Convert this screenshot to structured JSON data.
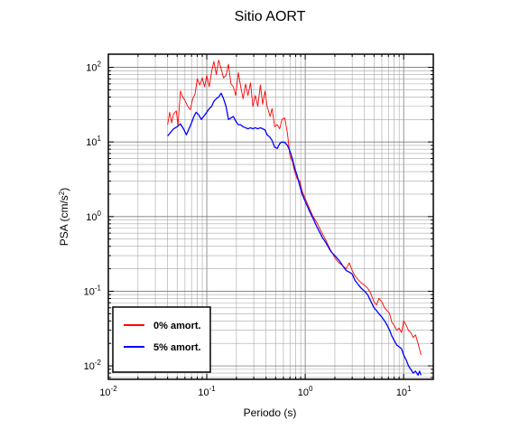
{
  "chart_data": {
    "type": "line",
    "title": "Sitio AORT",
    "xlabel": "Periodo (s)",
    "ylabel": {
      "main": "PSA (cm/s",
      "sup": "2",
      "end": ")"
    },
    "xscale": "log",
    "yscale": "log",
    "xlim": [
      0.01,
      20
    ],
    "ylim": [
      0.0066,
      150
    ],
    "grid": true,
    "legend_position": "bottom-left",
    "x_ticks": [
      {
        "value": 0.01,
        "base": "10",
        "exp": "-2"
      },
      {
        "value": 0.1,
        "base": "10",
        "exp": "-1"
      },
      {
        "value": 1,
        "base": "10",
        "exp": "0"
      },
      {
        "value": 10,
        "base": "10",
        "exp": "1"
      }
    ],
    "y_ticks": [
      {
        "value": 0.01,
        "base": "10",
        "exp": "-2"
      },
      {
        "value": 0.1,
        "base": "10",
        "exp": "-1"
      },
      {
        "value": 1,
        "base": "10",
        "exp": "0"
      },
      {
        "value": 10,
        "base": "10",
        "exp": "1"
      },
      {
        "value": 100,
        "base": "10",
        "exp": "2"
      }
    ],
    "series": [
      {
        "name": "0% amort.",
        "color": "#ff0000",
        "points": [
          [
            0.04,
            17
          ],
          [
            0.042,
            25
          ],
          [
            0.044,
            18
          ],
          [
            0.046,
            24
          ],
          [
            0.049,
            26
          ],
          [
            0.051,
            17
          ],
          [
            0.054,
            48
          ],
          [
            0.057,
            40
          ],
          [
            0.06,
            36
          ],
          [
            0.064,
            30
          ],
          [
            0.068,
            27
          ],
          [
            0.072,
            38
          ],
          [
            0.076,
            44
          ],
          [
            0.08,
            70
          ],
          [
            0.085,
            58
          ],
          [
            0.09,
            72
          ],
          [
            0.095,
            55
          ],
          [
            0.1,
            78
          ],
          [
            0.106,
            55
          ],
          [
            0.112,
            88
          ],
          [
            0.118,
            120
          ],
          [
            0.125,
            80
          ],
          [
            0.132,
            125
          ],
          [
            0.14,
            95
          ],
          [
            0.148,
            72
          ],
          [
            0.157,
            78
          ],
          [
            0.166,
            110
          ],
          [
            0.176,
            60
          ],
          [
            0.186,
            55
          ],
          [
            0.197,
            42
          ],
          [
            0.209,
            85
          ],
          [
            0.221,
            55
          ],
          [
            0.234,
            38
          ],
          [
            0.248,
            60
          ],
          [
            0.262,
            42
          ],
          [
            0.278,
            62
          ],
          [
            0.294,
            30
          ],
          [
            0.311,
            42
          ],
          [
            0.33,
            30
          ],
          [
            0.35,
            58
          ],
          [
            0.37,
            32
          ],
          [
            0.39,
            48
          ],
          [
            0.41,
            30
          ],
          [
            0.44,
            22
          ],
          [
            0.46,
            28
          ],
          [
            0.49,
            16
          ],
          [
            0.52,
            17
          ],
          [
            0.55,
            15
          ],
          [
            0.58,
            20
          ],
          [
            0.62,
            21
          ],
          [
            0.66,
            13
          ],
          [
            0.7,
            6.5
          ],
          [
            0.74,
            5.5
          ],
          [
            0.78,
            4.0
          ],
          [
            0.83,
            3.2
          ],
          [
            0.88,
            3.0
          ],
          [
            0.93,
            2.2
          ],
          [
            0.99,
            1.8
          ],
          [
            1.05,
            1.5
          ],
          [
            1.1,
            1.3
          ],
          [
            1.2,
            1.0
          ],
          [
            1.3,
            0.85
          ],
          [
            1.4,
            0.7
          ],
          [
            1.5,
            0.58
          ],
          [
            1.6,
            0.5
          ],
          [
            1.7,
            0.42
          ],
          [
            1.8,
            0.36
          ],
          [
            1.9,
            0.32
          ],
          [
            2.0,
            0.28
          ],
          [
            2.2,
            0.24
          ],
          [
            2.4,
            0.22
          ],
          [
            2.6,
            0.2
          ],
          [
            2.8,
            0.24
          ],
          [
            3.0,
            0.19
          ],
          [
            3.2,
            0.16
          ],
          [
            3.5,
            0.14
          ],
          [
            3.7,
            0.13
          ],
          [
            4.0,
            0.12
          ],
          [
            4.3,
            0.11
          ],
          [
            4.6,
            0.095
          ],
          [
            5.0,
            0.072
          ],
          [
            5.3,
            0.065
          ],
          [
            5.6,
            0.08
          ],
          [
            6.0,
            0.072
          ],
          [
            6.4,
            0.06
          ],
          [
            6.8,
            0.055
          ],
          [
            7.2,
            0.05
          ],
          [
            7.6,
            0.038
          ],
          [
            8.0,
            0.035
          ],
          [
            8.5,
            0.03
          ],
          [
            9.0,
            0.032
          ],
          [
            9.5,
            0.028
          ],
          [
            10.0,
            0.04
          ],
          [
            10.6,
            0.035
          ],
          [
            11.2,
            0.03
          ],
          [
            11.8,
            0.028
          ],
          [
            12.5,
            0.024
          ],
          [
            13.2,
            0.026
          ],
          [
            14.0,
            0.02
          ],
          [
            15.0,
            0.014
          ]
        ]
      },
      {
        "name": "5% amort.",
        "color": "#0000ff",
        "points": [
          [
            0.04,
            12
          ],
          [
            0.043,
            13.5
          ],
          [
            0.046,
            15
          ],
          [
            0.05,
            16
          ],
          [
            0.054,
            17.5
          ],
          [
            0.058,
            15
          ],
          [
            0.062,
            12.5
          ],
          [
            0.066,
            15
          ],
          [
            0.07,
            18
          ],
          [
            0.074,
            22
          ],
          [
            0.078,
            25
          ],
          [
            0.083,
            23
          ],
          [
            0.088,
            20
          ],
          [
            0.093,
            22
          ],
          [
            0.1,
            25
          ],
          [
            0.106,
            28
          ],
          [
            0.112,
            30
          ],
          [
            0.118,
            35
          ],
          [
            0.125,
            38
          ],
          [
            0.132,
            40
          ],
          [
            0.14,
            45
          ],
          [
            0.148,
            38
          ],
          [
            0.157,
            30
          ],
          [
            0.166,
            20
          ],
          [
            0.176,
            21
          ],
          [
            0.186,
            22
          ],
          [
            0.197,
            19
          ],
          [
            0.209,
            17
          ],
          [
            0.221,
            17
          ],
          [
            0.234,
            16
          ],
          [
            0.248,
            15.5
          ],
          [
            0.262,
            15
          ],
          [
            0.278,
            15.5
          ],
          [
            0.294,
            15
          ],
          [
            0.311,
            15.5
          ],
          [
            0.33,
            15
          ],
          [
            0.35,
            15.5
          ],
          [
            0.37,
            15
          ],
          [
            0.39,
            14.5
          ],
          [
            0.41,
            12.5
          ],
          [
            0.44,
            11.5
          ],
          [
            0.46,
            10.5
          ],
          [
            0.49,
            8.5
          ],
          [
            0.52,
            8.2
          ],
          [
            0.55,
            9.5
          ],
          [
            0.58,
            10
          ],
          [
            0.62,
            9.8
          ],
          [
            0.66,
            9
          ],
          [
            0.7,
            7.5
          ],
          [
            0.74,
            6
          ],
          [
            0.78,
            4.5
          ],
          [
            0.83,
            3.5
          ],
          [
            0.88,
            2.6
          ],
          [
            0.93,
            2.0
          ],
          [
            1.0,
            1.6
          ],
          [
            1.1,
            1.2
          ],
          [
            1.2,
            0.95
          ],
          [
            1.3,
            0.75
          ],
          [
            1.4,
            0.62
          ],
          [
            1.5,
            0.52
          ],
          [
            1.6,
            0.46
          ],
          [
            1.7,
            0.4
          ],
          [
            1.8,
            0.35
          ],
          [
            1.9,
            0.32
          ],
          [
            2.0,
            0.3
          ],
          [
            2.2,
            0.26
          ],
          [
            2.4,
            0.22
          ],
          [
            2.6,
            0.19
          ],
          [
            2.8,
            0.18
          ],
          [
            3.0,
            0.17
          ],
          [
            3.2,
            0.14
          ],
          [
            3.5,
            0.12
          ],
          [
            3.7,
            0.11
          ],
          [
            4.0,
            0.1
          ],
          [
            4.3,
            0.09
          ],
          [
            4.6,
            0.075
          ],
          [
            5.0,
            0.06
          ],
          [
            5.3,
            0.055
          ],
          [
            5.6,
            0.05
          ],
          [
            6.0,
            0.045
          ],
          [
            6.4,
            0.04
          ],
          [
            6.8,
            0.035
          ],
          [
            7.2,
            0.03
          ],
          [
            7.6,
            0.025
          ],
          [
            8.0,
            0.022
          ],
          [
            8.5,
            0.019
          ],
          [
            9.0,
            0.018
          ],
          [
            9.5,
            0.017
          ],
          [
            10.0,
            0.014
          ],
          [
            10.6,
            0.012
          ],
          [
            11.2,
            0.01
          ],
          [
            11.8,
            0.009
          ],
          [
            12.5,
            0.008
          ],
          [
            13.2,
            0.0085
          ],
          [
            14.0,
            0.0075
          ],
          [
            14.5,
            0.0085
          ],
          [
            15.0,
            0.0075
          ]
        ]
      }
    ]
  }
}
